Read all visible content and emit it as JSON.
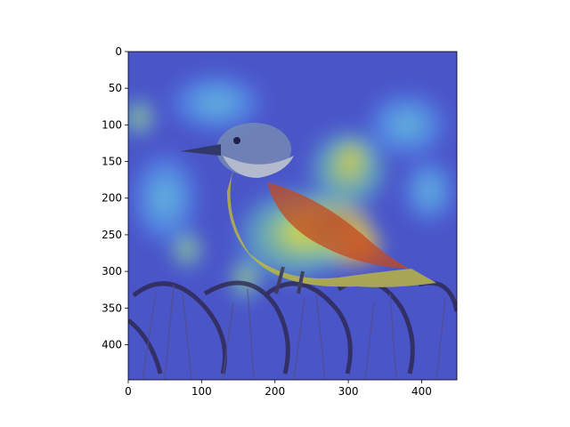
{
  "chart_data": {
    "type": "heatmap",
    "description_of_image": "",
    "title": "",
    "xlabel": "",
    "ylabel": "",
    "xlim": [
      0,
      448
    ],
    "ylim": [
      448,
      0
    ],
    "x_ticks": [
      0,
      100,
      200,
      300,
      400
    ],
    "y_ticks": [
      0,
      50,
      100,
      150,
      200,
      250,
      300,
      350,
      400
    ],
    "colormap": "jet",
    "image_size": [
      448,
      448
    ],
    "grid": false,
    "hotspots": [
      {
        "x": 305,
        "y": 142,
        "intensity": 1.0,
        "rx": 22,
        "ry": 22
      },
      {
        "x": 305,
        "y": 265,
        "intensity": 1.0,
        "rx": 45,
        "ry": 30
      },
      {
        "x": 270,
        "y": 240,
        "intensity": 0.8,
        "rx": 70,
        "ry": 45
      },
      {
        "x": 230,
        "y": 250,
        "intensity": 0.65,
        "rx": 90,
        "ry": 70
      },
      {
        "x": 300,
        "y": 160,
        "intensity": 0.6,
        "rx": 60,
        "ry": 60
      },
      {
        "x": 160,
        "y": 310,
        "intensity": 0.55,
        "rx": 25,
        "ry": 35
      },
      {
        "x": 80,
        "y": 270,
        "intensity": 0.55,
        "rx": 25,
        "ry": 30
      },
      {
        "x": 15,
        "y": 90,
        "intensity": 0.55,
        "rx": 25,
        "ry": 30
      },
      {
        "x": 50,
        "y": 200,
        "intensity": 0.45,
        "rx": 50,
        "ry": 70
      },
      {
        "x": 120,
        "y": 70,
        "intensity": 0.45,
        "rx": 70,
        "ry": 45
      },
      {
        "x": 380,
        "y": 100,
        "intensity": 0.45,
        "rx": 60,
        "ry": 50
      },
      {
        "x": 410,
        "y": 190,
        "intensity": 0.4,
        "rx": 40,
        "ry": 50
      }
    ],
    "colors": {
      "background_low": "#4a55c8",
      "frame": "#000000"
    }
  }
}
